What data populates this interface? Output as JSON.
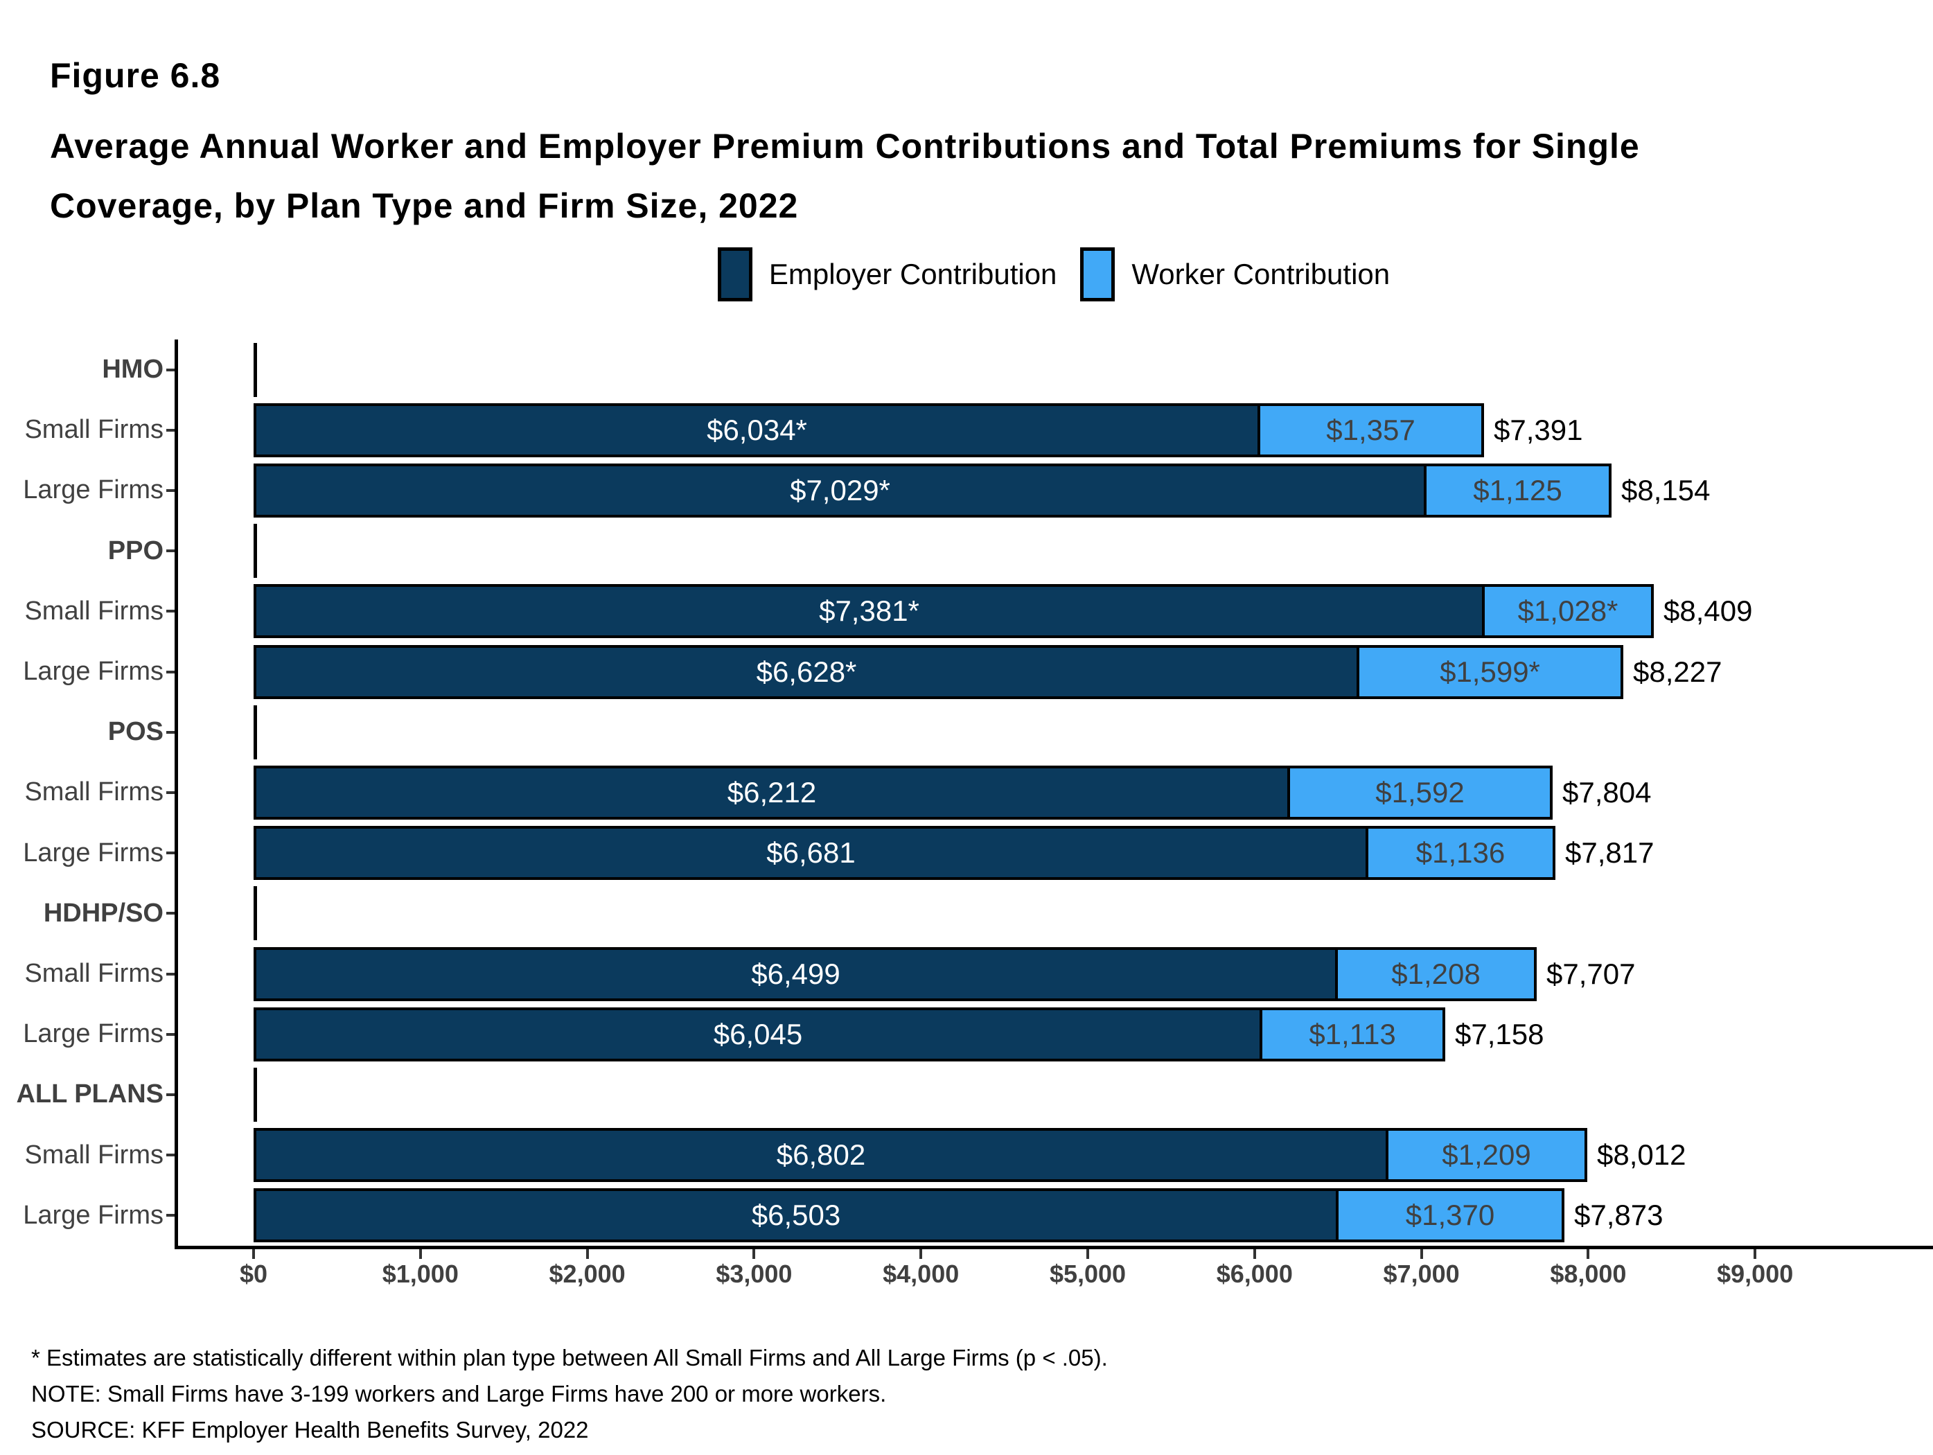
{
  "header": {
    "figure_label": "Figure 6.8",
    "title_lines": [
      "Average Annual Worker and Employer Premium Contributions and Total Premiums for Single",
      "Coverage, by Plan Type and Firm Size, 2022"
    ]
  },
  "legend": {
    "employer": "Employer Contribution",
    "worker": "Worker Contribution"
  },
  "colors": {
    "employer_fill": "#0B3A5D",
    "worker_fill": "#41A9F7",
    "bar_border": "#000000",
    "axis_text": "#404040"
  },
  "chart_data": {
    "type": "bar",
    "orientation": "horizontal",
    "stacked": true,
    "series_names": [
      "Employer Contribution",
      "Worker Contribution"
    ],
    "xlim": [
      0,
      9800
    ],
    "x_ticks": [
      {
        "value": 0,
        "label": "$0"
      },
      {
        "value": 1000,
        "label": "$1,000"
      },
      {
        "value": 2000,
        "label": "$2,000"
      },
      {
        "value": 3000,
        "label": "$3,000"
      },
      {
        "value": 4000,
        "label": "$4,000"
      },
      {
        "value": 5000,
        "label": "$5,000"
      },
      {
        "value": 6000,
        "label": "$6,000"
      },
      {
        "value": 7000,
        "label": "$7,000"
      },
      {
        "value": 8000,
        "label": "$8,000"
      },
      {
        "value": 9000,
        "label": "$9,000"
      }
    ],
    "rows": [
      {
        "kind": "group",
        "label": "HMO"
      },
      {
        "kind": "bar",
        "label": "Small Firms",
        "employer": 6034,
        "employer_label": "$6,034*",
        "worker": 1357,
        "worker_label": "$1,357",
        "total": 7391,
        "total_label": "$7,391"
      },
      {
        "kind": "bar",
        "label": "Large Firms",
        "employer": 7029,
        "employer_label": "$7,029*",
        "worker": 1125,
        "worker_label": "$1,125",
        "total": 8154,
        "total_label": "$8,154"
      },
      {
        "kind": "group",
        "label": "PPO"
      },
      {
        "kind": "bar",
        "label": "Small Firms",
        "employer": 7381,
        "employer_label": "$7,381*",
        "worker": 1028,
        "worker_label": "$1,028*",
        "total": 8409,
        "total_label": "$8,409"
      },
      {
        "kind": "bar",
        "label": "Large Firms",
        "employer": 6628,
        "employer_label": "$6,628*",
        "worker": 1599,
        "worker_label": "$1,599*",
        "total": 8227,
        "total_label": "$8,227"
      },
      {
        "kind": "group",
        "label": "POS"
      },
      {
        "kind": "bar",
        "label": "Small Firms",
        "employer": 6212,
        "employer_label": "$6,212",
        "worker": 1592,
        "worker_label": "$1,592",
        "total": 7804,
        "total_label": "$7,804"
      },
      {
        "kind": "bar",
        "label": "Large Firms",
        "employer": 6681,
        "employer_label": "$6,681",
        "worker": 1136,
        "worker_label": "$1,136",
        "total": 7817,
        "total_label": "$7,817"
      },
      {
        "kind": "group",
        "label": "HDHP/SO"
      },
      {
        "kind": "bar",
        "label": "Small Firms",
        "employer": 6499,
        "employer_label": "$6,499",
        "worker": 1208,
        "worker_label": "$1,208",
        "total": 7707,
        "total_label": "$7,707"
      },
      {
        "kind": "bar",
        "label": "Large Firms",
        "employer": 6045,
        "employer_label": "$6,045",
        "worker": 1113,
        "worker_label": "$1,113",
        "total": 7158,
        "total_label": "$7,158"
      },
      {
        "kind": "group",
        "label": "ALL PLANS"
      },
      {
        "kind": "bar",
        "label": "Small Firms",
        "employer": 6802,
        "employer_label": "$6,802",
        "worker": 1209,
        "worker_label": "$1,209",
        "total": 8012,
        "total_label": "$8,012"
      },
      {
        "kind": "bar",
        "label": "Large Firms",
        "employer": 6503,
        "employer_label": "$6,503",
        "worker": 1370,
        "worker_label": "$1,370",
        "total": 7873,
        "total_label": "$7,873"
      }
    ]
  },
  "footnotes": [
    "* Estimates are statistically different within plan type between All Small Firms and All Large Firms (p < .05).",
    "NOTE: Small Firms have 3-199 workers and Large Firms have 200 or more workers.",
    "SOURCE: KFF Employer Health Benefits Survey, 2022"
  ]
}
